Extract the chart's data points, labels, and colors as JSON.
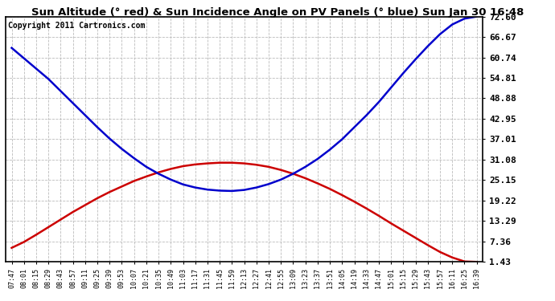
{
  "title": "Sun Altitude (° red) & Sun Incidence Angle on PV Panels (° blue) Sun Jan 30 16:48",
  "copyright": "Copyright 2011 Cartronics.com",
  "background_color": "#ffffff",
  "plot_bg_color": "#ffffff",
  "grid_color": "#bbbbbb",
  "ymin": 1.43,
  "ymax": 72.6,
  "yticks": [
    1.43,
    7.36,
    13.29,
    19.22,
    25.15,
    31.08,
    37.01,
    42.95,
    48.88,
    54.81,
    60.74,
    66.67,
    72.6
  ],
  "x_labels": [
    "07:47",
    "08:01",
    "08:15",
    "08:29",
    "08:43",
    "08:57",
    "09:11",
    "09:25",
    "09:39",
    "09:53",
    "10:07",
    "10:21",
    "10:35",
    "10:49",
    "11:03",
    "11:17",
    "11:31",
    "11:45",
    "11:59",
    "12:13",
    "12:27",
    "12:41",
    "12:55",
    "13:09",
    "13:23",
    "13:37",
    "13:51",
    "14:05",
    "14:19",
    "14:33",
    "14:47",
    "15:01",
    "15:15",
    "15:29",
    "15:43",
    "15:57",
    "16:11",
    "16:25",
    "16:39"
  ],
  "red_values": [
    5.5,
    7.2,
    9.3,
    11.5,
    13.7,
    15.9,
    17.9,
    19.9,
    21.7,
    23.3,
    24.9,
    26.2,
    27.4,
    28.4,
    29.2,
    29.7,
    30.0,
    30.2,
    30.2,
    30.0,
    29.6,
    29.0,
    28.1,
    27.0,
    25.7,
    24.2,
    22.6,
    20.8,
    18.9,
    16.9,
    14.8,
    12.6,
    10.5,
    8.4,
    6.3,
    4.3,
    2.7,
    1.55,
    1.43
  ],
  "blue_values": [
    63.5,
    60.5,
    57.5,
    54.5,
    51.0,
    47.5,
    44.0,
    40.5,
    37.2,
    34.2,
    31.5,
    29.0,
    27.0,
    25.3,
    23.9,
    23.0,
    22.4,
    22.1,
    22.0,
    22.3,
    23.0,
    24.0,
    25.3,
    27.0,
    29.0,
    31.3,
    34.0,
    37.0,
    40.5,
    44.0,
    47.8,
    52.0,
    56.2,
    60.2,
    64.0,
    67.5,
    70.3,
    72.0,
    72.6
  ],
  "red_color": "#cc0000",
  "blue_color": "#0000cc",
  "line_width": 1.8
}
